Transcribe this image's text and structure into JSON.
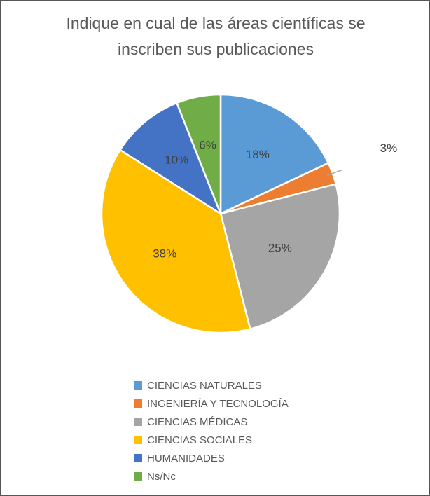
{
  "chart_data": {
    "type": "pie",
    "title": "Indique en cual de las áreas científicas se inscriben sus publicaciones",
    "categories": [
      "CIENCIAS NATURALES",
      "INGENIERÍA Y TECNOLOGÍA",
      "CIENCIAS MÉDICAS",
      "CIENCIAS SOCIALES",
      "HUMANIDADES",
      "Ns/Nc"
    ],
    "values": [
      18,
      3,
      25,
      38,
      10,
      6
    ],
    "value_labels": [
      "18%",
      "3%",
      "25%",
      "38%",
      "10%",
      "6%"
    ],
    "colors": [
      "#5b9bd5",
      "#ed7d31",
      "#a5a5a5",
      "#ffc000",
      "#4472c4",
      "#70ad47"
    ],
    "legend": "bottom"
  }
}
